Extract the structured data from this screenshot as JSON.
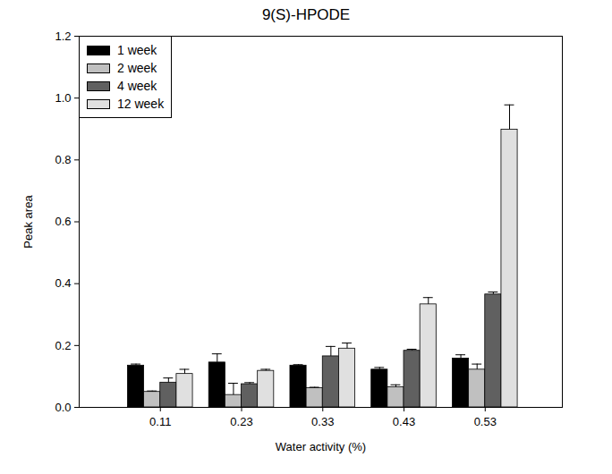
{
  "chart_data": {
    "type": "bar",
    "title": "9(S)-HPODE",
    "x_label": "Water activity (%)",
    "y_label": "Peak area",
    "categories": [
      "0.11",
      "0.23",
      "0.33",
      "0.43",
      "0.53"
    ],
    "series": [
      {
        "name": "1 week",
        "color": "#000000",
        "values": [
          0.135,
          0.145,
          0.135,
          0.122,
          0.158
        ],
        "errors": [
          0.005,
          0.028,
          0.003,
          0.007,
          0.012
        ]
      },
      {
        "name": "2 week",
        "color": "#c0c0c0",
        "values": [
          0.05,
          0.04,
          0.062,
          0.065,
          0.122
        ],
        "errors": [
          0.003,
          0.038,
          0.003,
          0.008,
          0.018
        ]
      },
      {
        "name": "4 week",
        "color": "#606060",
        "values": [
          0.08,
          0.075,
          0.165,
          0.183,
          0.365
        ],
        "errors": [
          0.015,
          0.005,
          0.032,
          0.005,
          0.008
        ]
      },
      {
        "name": "12 week",
        "color": "#e0e0e0",
        "values": [
          0.108,
          0.118,
          0.19,
          0.333,
          0.898
        ],
        "errors": [
          0.015,
          0.005,
          0.018,
          0.022,
          0.08
        ]
      }
    ],
    "ylim": [
      0,
      1.2
    ],
    "yticks": [
      {
        "value": 0,
        "label": "0.0"
      },
      {
        "value": 0.2,
        "label": "0.2"
      },
      {
        "value": 0.4,
        "label": "0.4"
      },
      {
        "value": 0.6,
        "label": "0.6"
      },
      {
        "value": 0.8,
        "label": "0.8"
      },
      {
        "value": 1,
        "label": "1.0"
      },
      {
        "value": 1.2,
        "label": "1.2"
      }
    ],
    "grid": false,
    "legend": "top-left"
  }
}
